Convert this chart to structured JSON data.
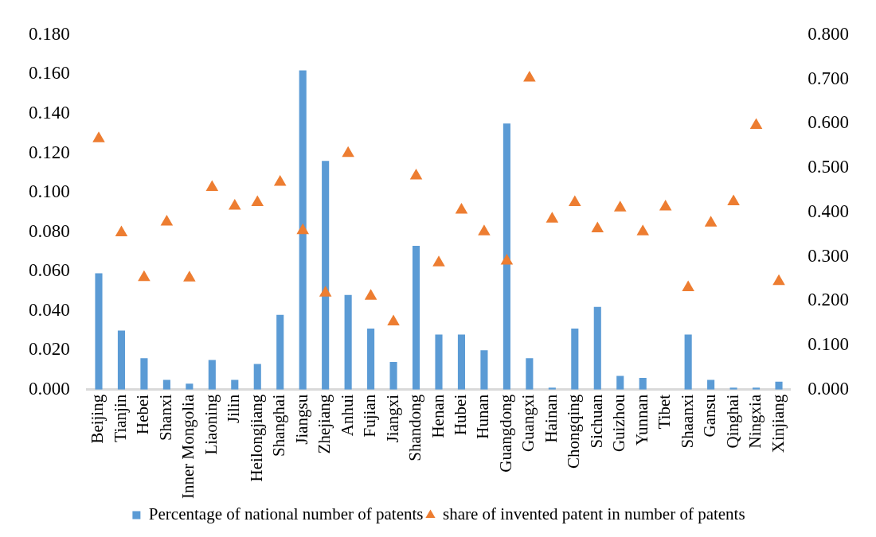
{
  "chart_data": {
    "type": "bar",
    "categories": [
      "Beijing",
      "Tianjin",
      "Hebei",
      "Shanxi",
      "Inner Mongolia",
      "Liaoning",
      "Jilin",
      "Heilongjiang",
      "Shanghai",
      "Jiangsu",
      "Zhejiang",
      "Anhui",
      "Fujian",
      "Jiangxi",
      "Shandong",
      "Henan",
      "Hubei",
      "Hunan",
      "Guangdong",
      "Guangxi",
      "Hainan",
      "Chongqing",
      "Sichuan",
      "Guizhou",
      "Yunnan",
      "Tibet",
      "Shaanxi",
      "Gansu",
      "Qinghai",
      "Ningxia",
      "Xinjiang"
    ],
    "series": [
      {
        "name": "Percentage of national number of patents",
        "color": "#5b9bd5",
        "values": [
          0.059,
          0.03,
          0.016,
          0.005,
          0.003,
          0.015,
          0.005,
          0.013,
          0.038,
          0.162,
          0.116,
          0.048,
          0.031,
          0.014,
          0.073,
          0.028,
          0.028,
          0.02,
          0.135,
          0.016,
          0.001,
          0.031,
          0.042,
          0.007,
          0.006,
          0,
          0.028,
          0.005,
          0.001,
          0.001,
          0.004
        ]
      },
      {
        "name": "share of invented patent in number of patents",
        "type": "scatter",
        "axis": "y2",
        "color": "#ed7d31",
        "marker": "triangle",
        "values": [
          0.566,
          0.354,
          0.253,
          0.378,
          0.252,
          0.456,
          0.414,
          0.422,
          0.468,
          0.359,
          0.218,
          0.533,
          0.211,
          0.153,
          0.482,
          0.286,
          0.405,
          0.356,
          0.29,
          0.703,
          0.385,
          0.422,
          0.363,
          0.41,
          0.356,
          0.412,
          0.23,
          0.376,
          0.424,
          0.596,
          0.244
        ]
      }
    ],
    "ylim": [
      0,
      0.18
    ],
    "yticks": [
      {
        "value": 0,
        "label": "0.000"
      },
      {
        "value": 0.02,
        "label": "0.020"
      },
      {
        "value": 0.04,
        "label": "0.040"
      },
      {
        "value": 0.06,
        "label": "0.060"
      },
      {
        "value": 0.08,
        "label": "0.080"
      },
      {
        "value": 0.1,
        "label": "0.100"
      },
      {
        "value": 0.12,
        "label": "0.120"
      },
      {
        "value": 0.14,
        "label": "0.140"
      },
      {
        "value": 0.16,
        "label": "0.160"
      },
      {
        "value": 0.18,
        "label": "0.180"
      }
    ],
    "y2lim": [
      0,
      0.8
    ],
    "y2ticks": [
      {
        "value": 0,
        "label": "0.000"
      },
      {
        "value": 0.1,
        "label": "0.100"
      },
      {
        "value": 0.2,
        "label": "0.200"
      },
      {
        "value": 0.3,
        "label": "0.300"
      },
      {
        "value": 0.4,
        "label": "0.400"
      },
      {
        "value": 0.5,
        "label": "0.500"
      },
      {
        "value": 0.6,
        "label": "0.600"
      },
      {
        "value": 0.7,
        "label": "0.700"
      },
      {
        "value": 0.8,
        "label": "0.800"
      }
    ],
    "grid": false,
    "legend": "bottom"
  }
}
